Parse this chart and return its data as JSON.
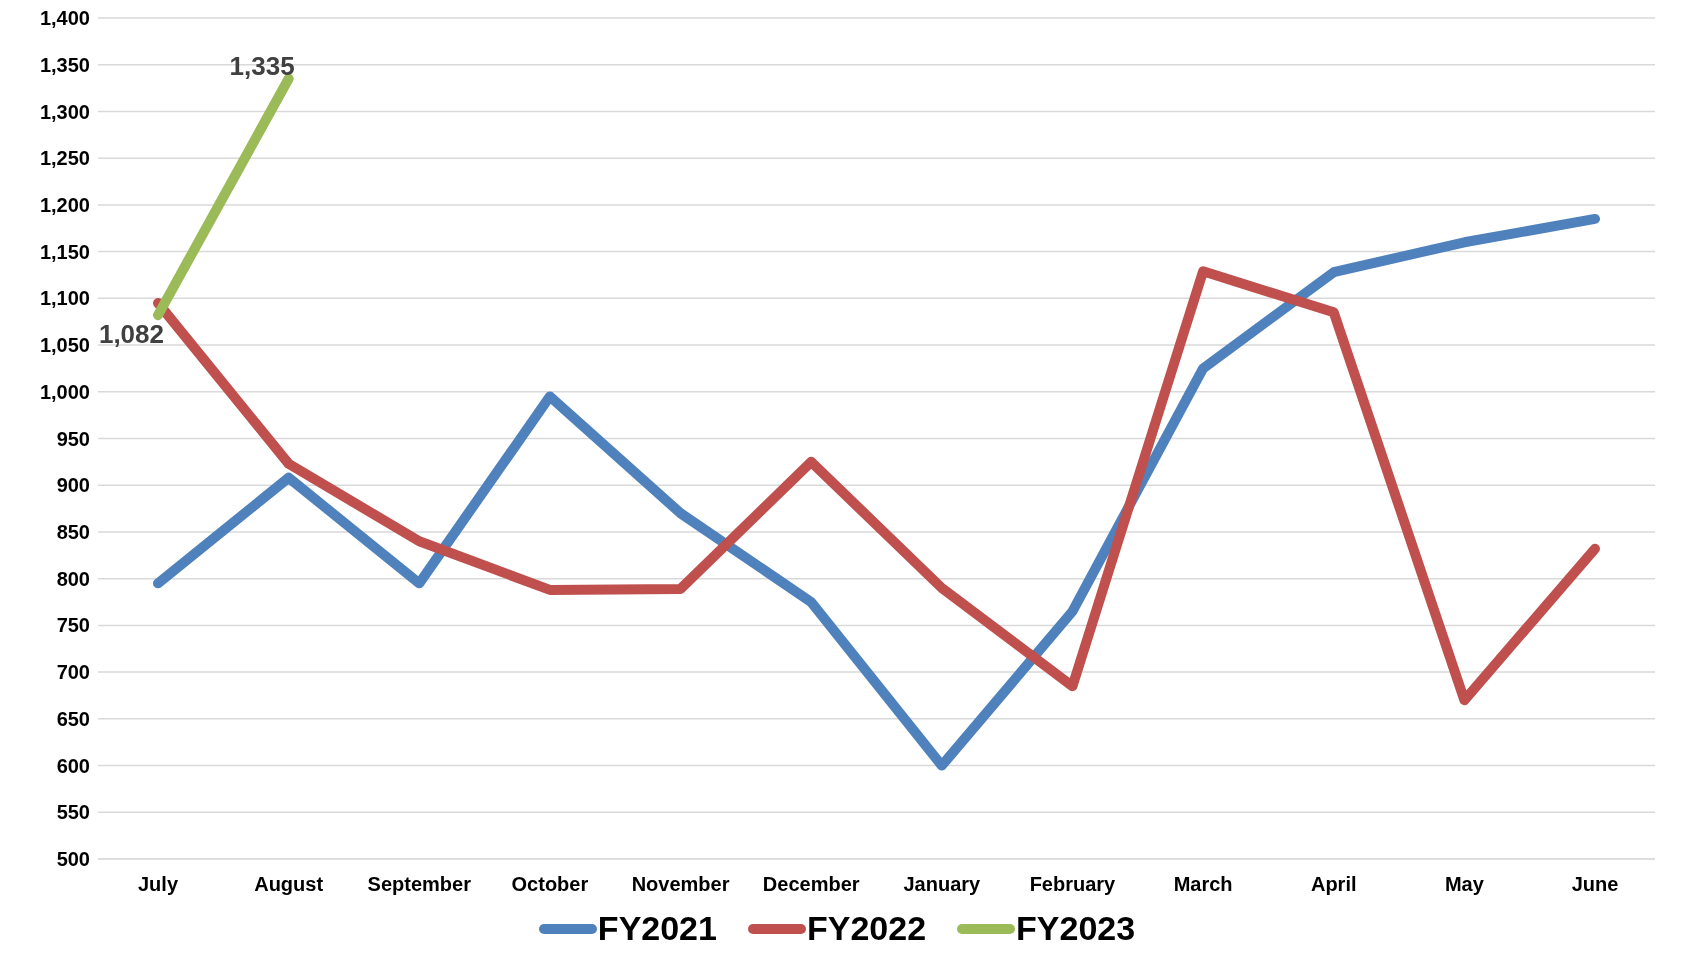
{
  "chart_data": {
    "type": "line",
    "categories": [
      "July",
      "August",
      "September",
      "October",
      "November",
      "December",
      "January",
      "February",
      "March",
      "April",
      "May",
      "June"
    ],
    "series": [
      {
        "name": "FY2021",
        "color": "#4f81bd",
        "values": [
          795,
          908,
          795,
          995,
          870,
          775,
          600,
          765,
          1025,
          1128,
          1160,
          1185
        ]
      },
      {
        "name": "FY2022",
        "color": "#c0504d",
        "values": [
          1095,
          923,
          840,
          788,
          789,
          925,
          790,
          685,
          1129,
          1085,
          670,
          832
        ]
      },
      {
        "name": "FY2023",
        "color": "#9bbb59",
        "values": [
          1082,
          1335,
          null,
          null,
          null,
          null,
          null,
          null,
          null,
          null,
          null,
          null
        ],
        "value_labels": [
          "1,082",
          "1,335",
          null,
          null,
          null,
          null,
          null,
          null,
          null,
          null,
          null,
          null
        ]
      }
    ],
    "ylim": [
      500,
      1400
    ],
    "yticks": [
      500,
      550,
      600,
      650,
      700,
      750,
      800,
      850,
      900,
      950,
      {
        "value": 1000,
        "label": "1,000"
      },
      {
        "value": 1050,
        "label": "1,050"
      },
      {
        "value": 1100,
        "label": "1,100"
      },
      {
        "value": 1150,
        "label": "1,150"
      },
      {
        "value": 1200,
        "label": "1,200"
      },
      {
        "value": 1250,
        "label": "1,250"
      },
      {
        "value": 1300,
        "label": "1,300"
      },
      {
        "value": 1350,
        "label": "1,350"
      },
      {
        "value": 1400,
        "label": "1,400"
      }
    ],
    "grid": "y",
    "legend": "bottom",
    "marker": "none",
    "line_style": "solid"
  }
}
